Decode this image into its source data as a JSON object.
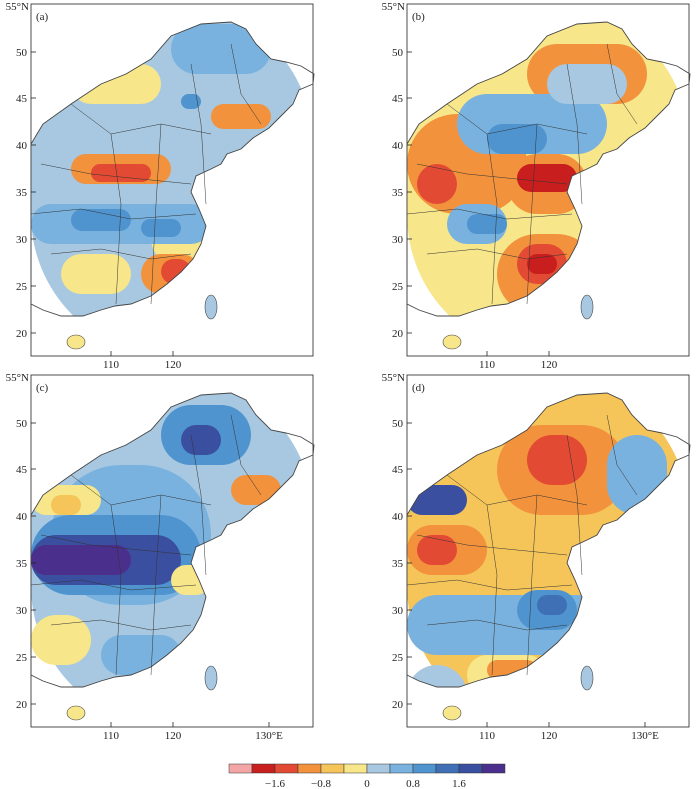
{
  "figure": {
    "panels": [
      {
        "id": "a",
        "label": "(a)",
        "lat_top": "55°N",
        "lon_right": ""
      },
      {
        "id": "b",
        "label": "(b)",
        "lat_top": "55°N",
        "lon_right": ""
      },
      {
        "id": "c",
        "label": "(c)",
        "lat_top": "55°N",
        "lon_right": "130°E"
      },
      {
        "id": "d",
        "label": "(d)",
        "lat_top": "55°N",
        "lon_right": "130°E"
      }
    ],
    "lat_ticks": [
      "50",
      "45",
      "40",
      "35",
      "30",
      "25",
      "20"
    ],
    "lon_ticks": [
      "110",
      "120"
    ],
    "colorbar": {
      "colors": [
        "#f4a6a6",
        "#c81e1e",
        "#e34a33",
        "#f2923c",
        "#f6c55a",
        "#f7e68a",
        "#a7c8e0",
        "#79b2de",
        "#4f94cf",
        "#3f6fb5",
        "#3b4fa0",
        "#4a2f8c"
      ],
      "labels": [
        "−1.6",
        "−0.8",
        "0",
        "0.8",
        "1.6"
      ]
    },
    "colors": {
      "ocean": "#ffffff",
      "border": "#333333",
      "coast": "#444444"
    }
  }
}
